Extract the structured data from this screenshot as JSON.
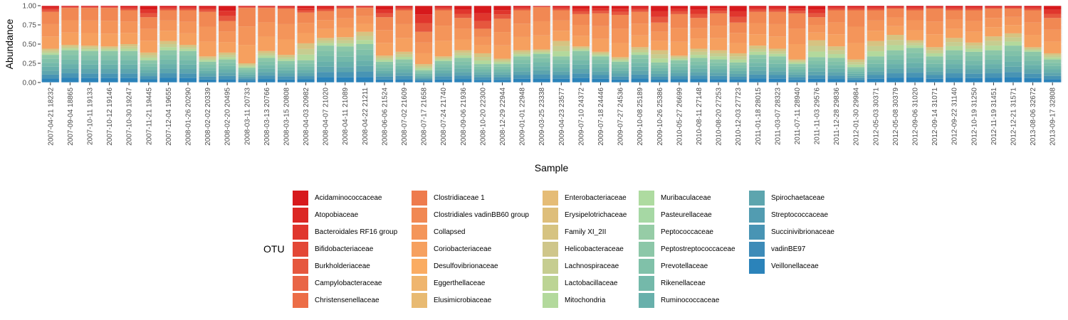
{
  "chart_data": {
    "type": "bar",
    "stacked": true,
    "xlabel": "Sample",
    "ylabel": "Abundance",
    "ylim": [
      0,
      1
    ],
    "yticks": [
      "0.00",
      "0.25",
      "0.50",
      "0.75",
      "1.00"
    ],
    "legend_title": "OTU",
    "legend_position": "bottom",
    "categories": [
      "2007-04-21 18232",
      "2007-09-04 18865",
      "2007-10-11 19133",
      "2007-10-12 19146",
      "2007-10-30 19247",
      "2007-11-21 19445",
      "2007-12-04 19655",
      "2008-01-26 20290",
      "2008-02-02 20339",
      "2008-02-20 20495",
      "2008-03-11 20733",
      "2008-03-13 20766",
      "2008-03-15 20808",
      "2008-04-03 20982",
      "2008-04-07 21020",
      "2008-04-11 21089",
      "2008-04-22 21211",
      "2008-06-06 21524",
      "2008-07-02 21609",
      "2008-07-17 21658",
      "2008-07-24 21740",
      "2008-09-06 21936",
      "2008-10-20 22300",
      "2008-12-29 22944",
      "2009-01-01 22948",
      "2009-03-25 23338",
      "2009-04-23 23577",
      "2009-07-10 24372",
      "2009-07-18 24446",
      "2009-07-27 24536",
      "2009-10-08 25189",
      "2009-10-26 25386",
      "2010-05-27 26699",
      "2010-08-11 27148",
      "2010-08-20 27253",
      "2010-12-03 27723",
      "2011-01-18 28015",
      "2011-03-07 28323",
      "2011-07-11 28940",
      "2011-11-03 29576",
      "2011-12-28 29836",
      "2012-01-30 29984",
      "2012-05-03 30371",
      "2012-05-08 30379",
      "2012-09-06 31020",
      "2012-09-14 31071",
      "2012-09-22 31140",
      "2012-10-19 31250",
      "2012-11-19 31451",
      "2012-12-21 31571",
      "2013-08-06 32672",
      "2013-09-17 32808"
    ],
    "groups": [
      {
        "name": "top_red",
        "values": [
          0.08,
          0.03,
          0.03,
          0.03,
          0.06,
          0.15,
          0.06,
          0.06,
          0.08,
          0.2,
          0.03,
          0.03,
          0.04,
          0.09,
          0.07,
          0.04,
          0.03,
          0.15,
          0.06,
          0.34,
          0.06,
          0.16,
          0.3,
          0.17,
          0.06,
          0.02,
          0.06,
          0.11,
          0.1,
          0.12,
          0.08,
          0.22,
          0.11,
          0.16,
          0.1,
          0.22,
          0.08,
          0.08,
          0.1,
          0.15,
          0.06,
          0.06,
          0.06,
          0.04,
          0.06,
          0.04,
          0.06,
          0.06,
          0.04,
          0.04,
          0.06,
          0.16
        ]
      },
      {
        "name": "orange",
        "values": [
          0.48,
          0.48,
          0.49,
          0.5,
          0.44,
          0.46,
          0.4,
          0.45,
          0.58,
          0.41,
          0.72,
          0.56,
          0.6,
          0.4,
          0.35,
          0.37,
          0.31,
          0.5,
          0.54,
          0.42,
          0.6,
          0.42,
          0.32,
          0.52,
          0.52,
          0.55,
          0.4,
          0.42,
          0.5,
          0.55,
          0.46,
          0.36,
          0.54,
          0.4,
          0.48,
          0.4,
          0.44,
          0.48,
          0.6,
          0.3,
          0.47,
          0.64,
          0.4,
          0.34,
          0.39,
          0.5,
          0.36,
          0.42,
          0.36,
          0.32,
          0.48,
          0.46
        ]
      },
      {
        "name": "yellow_green",
        "values": [
          0.08,
          0.07,
          0.07,
          0.06,
          0.09,
          0.1,
          0.12,
          0.08,
          0.07,
          0.09,
          0.06,
          0.09,
          0.08,
          0.22,
          0.1,
          0.12,
          0.16,
          0.08,
          0.1,
          0.08,
          0.06,
          0.1,
          0.14,
          0.07,
          0.08,
          0.06,
          0.2,
          0.06,
          0.06,
          0.06,
          0.1,
          0.16,
          0.06,
          0.12,
          0.12,
          0.12,
          0.12,
          0.1,
          0.06,
          0.22,
          0.15,
          0.1,
          0.2,
          0.2,
          0.1,
          0.12,
          0.16,
          0.12,
          0.18,
          0.16,
          0.06,
          0.08
        ]
      },
      {
        "name": "teal",
        "values": [
          0.36,
          0.42,
          0.41,
          0.41,
          0.41,
          0.29,
          0.42,
          0.41,
          0.27,
          0.3,
          0.19,
          0.32,
          0.28,
          0.29,
          0.48,
          0.47,
          0.5,
          0.27,
          0.3,
          0.16,
          0.28,
          0.32,
          0.24,
          0.24,
          0.34,
          0.37,
          0.34,
          0.41,
          0.34,
          0.27,
          0.36,
          0.26,
          0.29,
          0.32,
          0.3,
          0.26,
          0.36,
          0.34,
          0.24,
          0.33,
          0.32,
          0.2,
          0.34,
          0.42,
          0.45,
          0.34,
          0.42,
          0.4,
          0.42,
          0.48,
          0.4,
          0.3
        ]
      }
    ]
  },
  "legend": {
    "columns": [
      [
        {
          "label": "Acidaminococcaceae",
          "color": "#D7191C"
        },
        {
          "label": "Atopobiaceae",
          "color": "#DC2724"
        },
        {
          "label": "Bacteroidales RF16 group",
          "color": "#E0362D"
        },
        {
          "label": "Bifidobacteriaceae",
          "color": "#E34736"
        },
        {
          "label": "Burkholderiaceae",
          "color": "#E6573E"
        },
        {
          "label": "Campylobacteraceae",
          "color": "#E96546"
        },
        {
          "label": "Christensenellaceae",
          "color": "#EC6D47"
        }
      ],
      [
        {
          "label": "Clostridiaceae 1",
          "color": "#EE7B4D"
        },
        {
          "label": "Clostridiales vadinBB60 group",
          "color": "#F18853"
        },
        {
          "label": "Collapsed",
          "color": "#F4955A"
        },
        {
          "label": "Coriobacteriaceae",
          "color": "#F6A05F"
        },
        {
          "label": "Desulfovibrionaceae",
          "color": "#FAAC62"
        },
        {
          "label": "Eggerthellaceae",
          "color": "#EFB56E"
        },
        {
          "label": "Elusimicrobiaceae",
          "color": "#E8BA72"
        }
      ],
      [
        {
          "label": "Enterobacteriaceae",
          "color": "#E5BC76"
        },
        {
          "label": "Erysipelotrichaceae",
          "color": "#DEBE7A"
        },
        {
          "label": "Family XI_2II",
          "color": "#D6C381"
        },
        {
          "label": "Helicobacteraceae",
          "color": "#CFC68A"
        },
        {
          "label": "Lachnospiraceae",
          "color": "#C6CD90"
        },
        {
          "label": "Lactobacillaceae",
          "color": "#BCD494"
        },
        {
          "label": "Mitochondria",
          "color": "#B3D99C"
        }
      ],
      [
        {
          "label": "Muribaculaceae",
          "color": "#AEDBA0"
        },
        {
          "label": "Pasteurellaceae",
          "color": "#A6D8A4"
        },
        {
          "label": "Peptococcaceae",
          "color": "#96CCA6"
        },
        {
          "label": "Peptostreptococcaceae",
          "color": "#8CC7A8"
        },
        {
          "label": "Prevotellaceae",
          "color": "#80C1A9"
        },
        {
          "label": "Rikenellaceae",
          "color": "#74B9AA"
        },
        {
          "label": "Ruminococcaceae",
          "color": "#68B0AB"
        }
      ],
      [
        {
          "label": "Spirochaetaceae",
          "color": "#5DA5AE"
        },
        {
          "label": "Streptococcaceae",
          "color": "#529CB1"
        },
        {
          "label": "Succinivibrionaceae",
          "color": "#4894B4"
        },
        {
          "label": "vadinBE97",
          "color": "#3D8BB8"
        },
        {
          "label": "Veillonellaceae",
          "color": "#2B83BA"
        }
      ]
    ]
  },
  "colors": {
    "panel_bg": "#EBEBEB",
    "grid": "#FFFFFF",
    "bar_outline": "#FFFFFF",
    "top_red": [
      "#D7191C",
      "#E0362D",
      "#E6573E"
    ],
    "orange": [
      "#F18853",
      "#F4955A",
      "#F6A05F"
    ],
    "yellow_green": [
      "#D6C381",
      "#C6CD90",
      "#B3D99C"
    ],
    "teal": [
      "#8CC7A8",
      "#80C1A9",
      "#74B9AA",
      "#68B0AB",
      "#5DA5AE",
      "#4894B4",
      "#2B83BA"
    ]
  }
}
